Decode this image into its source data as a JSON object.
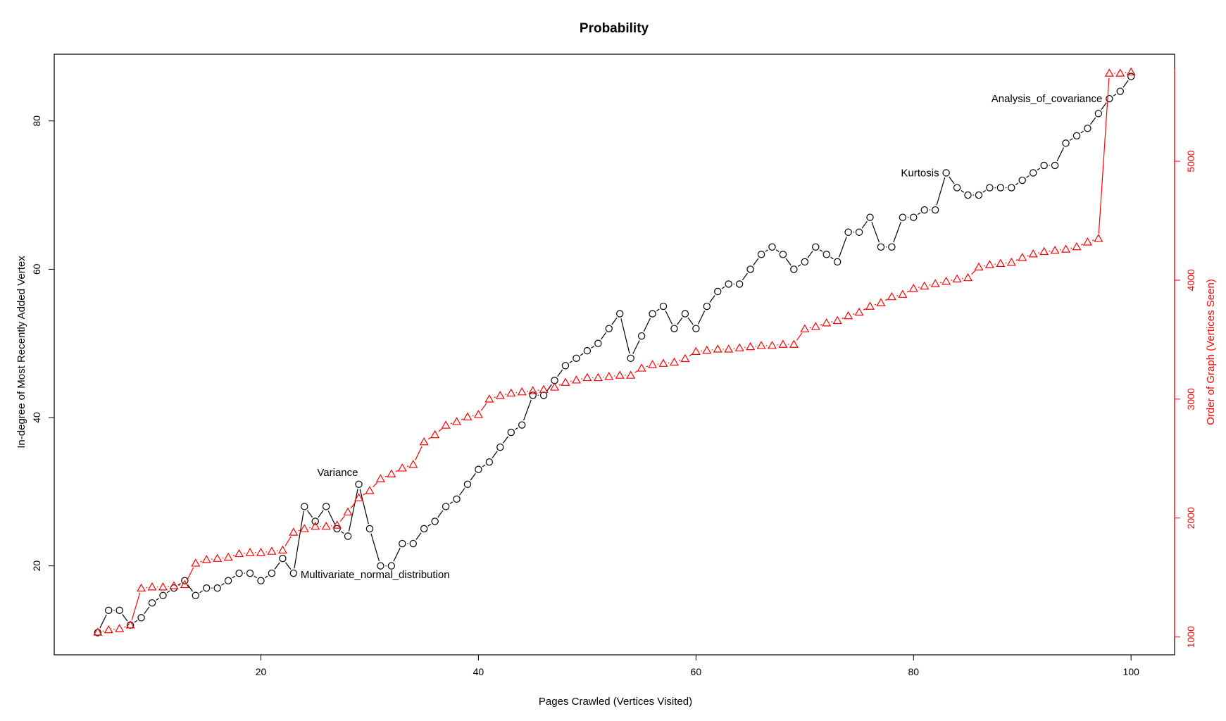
{
  "chart_data": {
    "type": "line",
    "title": "Probability",
    "xlabel": "Pages Crawled (Vertices Visited)",
    "ylabel": "In-degree of Most Recently Added Vertex",
    "y2label": "Order of Graph (Vertices Seen)",
    "xlim": [
      1,
      104
    ],
    "ylim": [
      8,
      89
    ],
    "y2lim": [
      850,
      5900
    ],
    "xticks": [
      20,
      40,
      60,
      80,
      100
    ],
    "yticks": [
      20,
      40,
      60,
      80
    ],
    "y2ticks": [
      1000,
      2000,
      3000,
      4000,
      5000
    ],
    "x": [
      5,
      6,
      7,
      8,
      9,
      10,
      11,
      12,
      13,
      14,
      15,
      16,
      17,
      18,
      19,
      20,
      21,
      22,
      23,
      24,
      25,
      26,
      27,
      28,
      29,
      30,
      31,
      32,
      33,
      34,
      35,
      36,
      37,
      38,
      39,
      40,
      41,
      42,
      43,
      44,
      45,
      46,
      47,
      48,
      49,
      50,
      51,
      52,
      53,
      54,
      55,
      56,
      57,
      58,
      59,
      60,
      61,
      62,
      63,
      64,
      65,
      66,
      67,
      68,
      69,
      70,
      71,
      72,
      73,
      74,
      75,
      76,
      77,
      78,
      79,
      80,
      81,
      82,
      83,
      84,
      85,
      86,
      87,
      88,
      89,
      90,
      91,
      92,
      93,
      94,
      95,
      96,
      97,
      98,
      99,
      100
    ],
    "series": [
      {
        "axis": "left",
        "marker": "circle",
        "color": "#000000",
        "values": [
          11,
          14,
          14,
          12,
          13,
          15,
          16,
          17,
          18,
          16,
          17,
          17,
          18,
          19,
          19,
          18,
          19,
          21,
          19,
          28,
          26,
          28,
          25,
          24,
          31,
          25,
          20,
          20,
          23,
          23,
          25,
          26,
          28,
          29,
          31,
          33,
          34,
          36,
          38,
          39,
          43,
          43,
          45,
          47,
          48,
          49,
          50,
          52,
          54,
          48,
          51,
          54,
          55,
          52,
          54,
          52,
          55,
          57,
          58,
          58,
          60,
          62,
          63,
          62,
          60,
          61,
          63,
          62,
          61,
          65,
          65,
          67,
          63,
          63,
          67,
          67,
          68,
          68,
          73,
          71,
          70,
          70,
          71,
          71,
          71,
          72,
          73,
          74,
          74,
          77,
          78,
          79,
          81,
          83,
          84,
          86
        ]
      },
      {
        "axis": "right",
        "marker": "triangle",
        "color": "#ff0000",
        "values": [
          1040,
          1060,
          1070,
          1100,
          1410,
          1420,
          1420,
          1430,
          1440,
          1620,
          1650,
          1660,
          1670,
          1700,
          1710,
          1710,
          1720,
          1730,
          1880,
          1910,
          1930,
          1930,
          1940,
          2050,
          2170,
          2230,
          2330,
          2370,
          2420,
          2450,
          2640,
          2700,
          2780,
          2810,
          2850,
          2870,
          3000,
          3030,
          3050,
          3060,
          3070,
          3080,
          3100,
          3140,
          3160,
          3180,
          3180,
          3190,
          3200,
          3200,
          3260,
          3290,
          3300,
          3310,
          3340,
          3400,
          3410,
          3420,
          3420,
          3430,
          3440,
          3450,
          3450,
          3460,
          3460,
          3590,
          3610,
          3640,
          3660,
          3700,
          3730,
          3780,
          3810,
          3860,
          3880,
          3930,
          3950,
          3970,
          3990,
          4010,
          4020,
          4110,
          4130,
          4140,
          4150,
          4190,
          4220,
          4240,
          4250,
          4260,
          4280,
          4320,
          4350,
          5740,
          5740,
          5750
        ]
      }
    ],
    "annotations": [
      {
        "x": 29,
        "y": 31,
        "text": "Variance"
      },
      {
        "x": 23,
        "y": 19,
        "text": "Multivariate_normal_distribution"
      },
      {
        "x": 83,
        "y": 73,
        "text": "Kurtosis"
      },
      {
        "x": 98,
        "y": 83,
        "text": "Analysis_of_covariance"
      }
    ]
  }
}
